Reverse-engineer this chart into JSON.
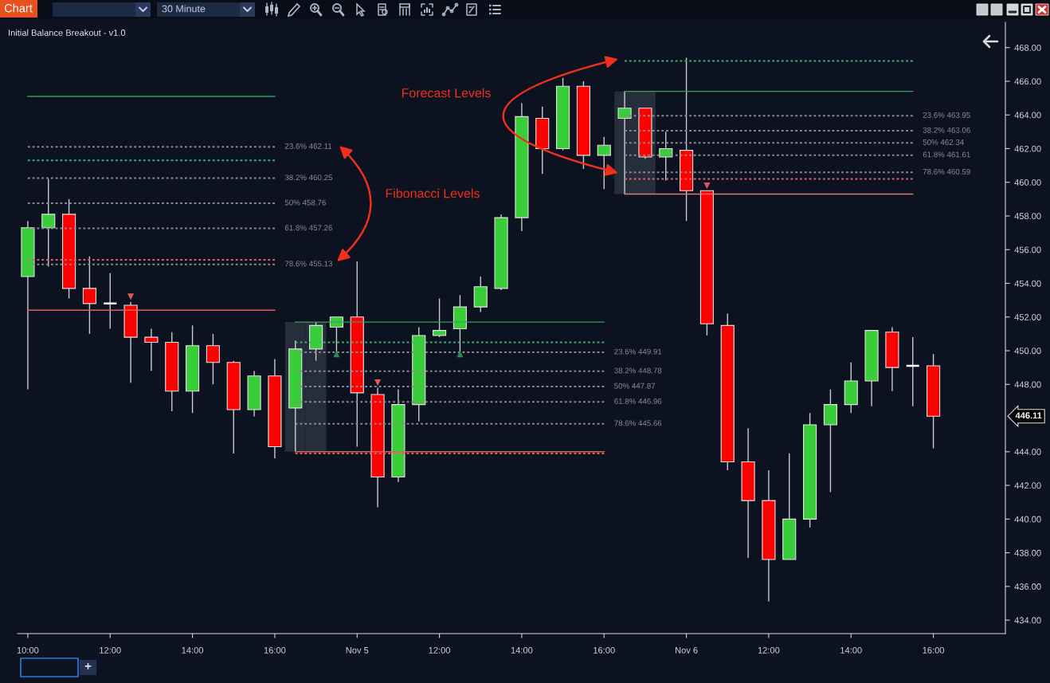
{
  "chart_data": {
    "type": "candlestick",
    "title": "Initial Balance Breakout - v1.0",
    "categories": [
      "10:00",
      null,
      null,
      null,
      "12:00",
      null,
      null,
      null,
      "14:00",
      null,
      null,
      null,
      "16:00",
      null,
      null,
      null,
      "Nov 5",
      null,
      null,
      null,
      "12:00",
      null,
      null,
      null,
      "14:00",
      null,
      null,
      null,
      "16:00",
      null,
      null,
      null,
      "Nov 6",
      null,
      null,
      null,
      "12:00",
      null,
      null,
      null,
      "14:00",
      null,
      null,
      null,
      "16:00",
      null,
      null,
      null
    ],
    "ohlc": [
      [
        454.4,
        457.7,
        447.7,
        457.3
      ],
      [
        457.3,
        460.2,
        455.0,
        458.1
      ],
      [
        458.1,
        459.0,
        453.1,
        453.7
      ],
      [
        453.7,
        455.6,
        451.0,
        452.8
      ],
      [
        452.8,
        454.6,
        451.3,
        452.8
      ],
      [
        452.7,
        452.9,
        448.1,
        450.8
      ],
      [
        450.8,
        451.3,
        448.8,
        450.5
      ],
      [
        450.5,
        451.1,
        446.4,
        447.6
      ],
      [
        447.6,
        451.5,
        446.3,
        450.3
      ],
      [
        450.3,
        451.0,
        448.0,
        449.3
      ],
      [
        449.3,
        449.4,
        443.9,
        446.5
      ],
      [
        446.5,
        448.8,
        446.1,
        448.5
      ],
      [
        448.5,
        449.5,
        443.6,
        444.3
      ],
      [
        446.6,
        450.6,
        444.0,
        450.1
      ],
      [
        450.1,
        451.7,
        449.4,
        451.5
      ],
      [
        451.4,
        452.0,
        449.9,
        452.0
      ],
      [
        452.0,
        455.3,
        444.3,
        447.5
      ],
      [
        447.4,
        447.8,
        440.7,
        442.5
      ],
      [
        442.5,
        447.7,
        442.2,
        446.8
      ],
      [
        446.8,
        451.4,
        445.8,
        450.9
      ],
      [
        450.9,
        453.1,
        450.8,
        451.2
      ],
      [
        451.3,
        453.3,
        449.9,
        452.6
      ],
      [
        452.6,
        454.4,
        452.3,
        453.8
      ],
      [
        453.7,
        458.1,
        453.6,
        457.9
      ],
      [
        457.9,
        464.7,
        457.1,
        463.9
      ],
      [
        463.8,
        464.5,
        460.5,
        462.0
      ],
      [
        462.0,
        466.2,
        461.9,
        465.7
      ],
      [
        465.7,
        466.0,
        460.8,
        461.6
      ],
      [
        461.6,
        462.7,
        459.6,
        462.2
      ],
      [
        463.8,
        465.4,
        459.3,
        464.4
      ],
      [
        464.4,
        464.4,
        461.4,
        461.5
      ],
      [
        461.5,
        463.0,
        460.1,
        462.0
      ],
      [
        461.9,
        467.4,
        457.7,
        459.5
      ],
      [
        459.5,
        459.5,
        450.9,
        451.6
      ],
      [
        451.5,
        452.2,
        442.9,
        443.4
      ],
      [
        443.4,
        445.4,
        437.7,
        441.1
      ],
      [
        441.1,
        442.9,
        435.1,
        437.6
      ],
      [
        437.6,
        443.9,
        437.6,
        440.0
      ],
      [
        440.0,
        446.3,
        439.5,
        445.6
      ],
      [
        445.6,
        447.7,
        441.6,
        446.8
      ],
      [
        446.8,
        449.3,
        446.3,
        448.2
      ],
      [
        448.2,
        451.2,
        446.7,
        451.2
      ],
      [
        451.1,
        451.4,
        447.6,
        449.0
      ],
      [
        449.1,
        450.8,
        446.7,
        449.1
      ],
      [
        449.1,
        449.8,
        444.2,
        446.11
      ],
      null,
      null,
      null
    ],
    "colors": [
      "#3acd3a",
      "#3acd3a",
      "#ff0000",
      "#ff0000",
      "#ffffff",
      "#ff0000",
      "#ff0000",
      "#ff0000",
      "#3acd3a",
      "#ff0000",
      "#ff0000",
      "#3acd3a",
      "#ff0000",
      "#3acd3a",
      "#3acd3a",
      "#3acd3a",
      "#ff0000",
      "#ff0000",
      "#3acd3a",
      "#3acd3a",
      "#3acd3a",
      "#3acd3a",
      "#3acd3a",
      "#3acd3a",
      "#3acd3a",
      "#ff0000",
      "#3acd3a",
      "#ff0000",
      "#3acd3a",
      "#3acd3a",
      "#ff0000",
      "#3acd3a",
      "#ff0000",
      "#ff0000",
      "#ff0000",
      "#ff0000",
      "#ff0000",
      "#3acd3a",
      "#3acd3a",
      "#3acd3a",
      "#3acd3a",
      "#3acd3a",
      "#ff0000",
      "#ffffff",
      "#ff0000",
      null,
      null,
      null
    ],
    "series": [
      {
        "type": "bar",
        "color": "#262d3b",
        "base": [
          null,
          null,
          null,
          null,
          null,
          null,
          null,
          null,
          null,
          null,
          null,
          null,
          null,
          444.0,
          444.0,
          null,
          null,
          null,
          null,
          null,
          null,
          null,
          null,
          null,
          null,
          null,
          null,
          null,
          null,
          459.3,
          459.3,
          null,
          null,
          null,
          null,
          null,
          null,
          null,
          null,
          null,
          null,
          null,
          null,
          null,
          null,
          null,
          null,
          null
        ],
        "values": [
          null,
          null,
          null,
          null,
          null,
          null,
          null,
          null,
          null,
          null,
          null,
          null,
          null,
          7.7,
          7.7,
          null,
          null,
          null,
          null,
          null,
          null,
          null,
          null,
          null,
          null,
          null,
          null,
          null,
          null,
          6.1,
          6.1,
          null,
          null,
          null,
          null,
          null,
          null,
          null,
          null,
          null,
          null,
          null,
          null,
          null,
          null,
          null,
          null,
          null
        ]
      },
      {
        "type": "line",
        "color": "#2f9e5f",
        "line_style": "solid",
        "values": [
          465.1,
          465.1,
          465.1,
          465.1,
          465.1,
          465.1,
          465.1,
          465.1,
          465.1,
          465.1,
          465.1,
          465.1,
          465.1,
          null,
          null,
          null,
          null,
          null,
          null,
          null,
          null,
          null,
          null,
          null,
          null,
          null,
          null,
          null,
          null,
          null,
          null,
          null,
          null,
          null,
          null,
          null,
          null,
          null,
          null,
          null,
          null,
          null,
          null,
          null,
          null,
          null,
          null,
          null
        ]
      },
      {
        "type": "line",
        "name": "23.6% 462.11",
        "color": "#8c8c8c",
        "line_style": "dotted",
        "values": [
          462.11,
          462.11,
          462.11,
          462.11,
          462.11,
          462.11,
          462.11,
          462.11,
          462.11,
          462.11,
          462.11,
          462.11,
          462.11,
          null,
          null,
          null,
          null,
          null,
          null,
          null,
          null,
          null,
          null,
          null,
          null,
          null,
          null,
          null,
          null,
          null,
          null,
          null,
          null,
          null,
          null,
          null,
          null,
          null,
          null,
          null,
          null,
          null,
          null,
          null,
          null,
          null,
          null,
          null
        ]
      },
      {
        "type": "line",
        "color": "#3cb371",
        "line_style": "dotted",
        "values": [
          461.3,
          461.3,
          461.3,
          461.3,
          461.3,
          461.3,
          461.3,
          461.3,
          461.3,
          461.3,
          461.3,
          461.3,
          461.3,
          null,
          null,
          null,
          null,
          null,
          null,
          null,
          null,
          null,
          null,
          null,
          null,
          null,
          null,
          null,
          null,
          null,
          null,
          null,
          null,
          null,
          null,
          null,
          null,
          null,
          null,
          null,
          null,
          null,
          null,
          null,
          null,
          null,
          null,
          null
        ]
      },
      {
        "type": "line",
        "name": "38.2% 460.25",
        "color": "#8c8c8c",
        "line_style": "dotted",
        "values": [
          460.25,
          460.25,
          460.25,
          460.25,
          460.25,
          460.25,
          460.25,
          460.25,
          460.25,
          460.25,
          460.25,
          460.25,
          460.25,
          null,
          null,
          null,
          null,
          null,
          null,
          null,
          null,
          null,
          null,
          null,
          null,
          null,
          null,
          null,
          null,
          null,
          null,
          null,
          null,
          null,
          null,
          null,
          null,
          null,
          null,
          null,
          null,
          null,
          null,
          null,
          null,
          null,
          null,
          null
        ]
      },
      {
        "type": "line",
        "name": "50% 458.76",
        "color": "#8c8c8c",
        "line_style": "dotted",
        "values": [
          458.76,
          458.76,
          458.76,
          458.76,
          458.76,
          458.76,
          458.76,
          458.76,
          458.76,
          458.76,
          458.76,
          458.76,
          458.76,
          null,
          null,
          null,
          null,
          null,
          null,
          null,
          null,
          null,
          null,
          null,
          null,
          null,
          null,
          null,
          null,
          null,
          null,
          null,
          null,
          null,
          null,
          null,
          null,
          null,
          null,
          null,
          null,
          null,
          null,
          null,
          null,
          null,
          null,
          null
        ]
      },
      {
        "type": "line",
        "name": "61.8% 457.26",
        "color": "#8c8c8c",
        "line_style": "dotted",
        "values": [
          457.26,
          457.26,
          457.26,
          457.26,
          457.26,
          457.26,
          457.26,
          457.26,
          457.26,
          457.26,
          457.26,
          457.26,
          457.26,
          null,
          null,
          null,
          null,
          null,
          null,
          null,
          null,
          null,
          null,
          null,
          null,
          null,
          null,
          null,
          null,
          null,
          null,
          null,
          null,
          null,
          null,
          null,
          null,
          null,
          null,
          null,
          null,
          null,
          null,
          null,
          null,
          null,
          null,
          null
        ]
      },
      {
        "type": "line",
        "color": "#e06464",
        "line_style": "dotted",
        "values": [
          455.4,
          455.4,
          455.4,
          455.4,
          455.4,
          455.4,
          455.4,
          455.4,
          455.4,
          455.4,
          455.4,
          455.4,
          455.4,
          null,
          null,
          null,
          null,
          null,
          null,
          null,
          null,
          null,
          null,
          null,
          null,
          null,
          null,
          null,
          null,
          null,
          null,
          null,
          null,
          null,
          null,
          null,
          null,
          null,
          null,
          null,
          null,
          null,
          null,
          null,
          null,
          null,
          null,
          null
        ]
      },
      {
        "type": "line",
        "name": "78.6% 455.13",
        "color": "#8c8c8c",
        "line_style": "dotted",
        "values": [
          455.13,
          455.13,
          455.13,
          455.13,
          455.13,
          455.13,
          455.13,
          455.13,
          455.13,
          455.13,
          455.13,
          455.13,
          455.13,
          null,
          null,
          null,
          null,
          null,
          null,
          null,
          null,
          null,
          null,
          null,
          null,
          null,
          null,
          null,
          null,
          null,
          null,
          null,
          null,
          null,
          null,
          null,
          null,
          null,
          null,
          null,
          null,
          null,
          null,
          null,
          null,
          null,
          null,
          null
        ]
      },
      {
        "type": "line",
        "color": "#d9605f",
        "line_style": "solid",
        "values": [
          452.4,
          452.4,
          452.4,
          452.4,
          452.4,
          452.4,
          452.4,
          452.4,
          452.4,
          452.4,
          452.4,
          452.4,
          452.4,
          null,
          null,
          null,
          null,
          null,
          null,
          null,
          null,
          null,
          null,
          null,
          null,
          null,
          null,
          null,
          null,
          null,
          null,
          null,
          null,
          null,
          null,
          null,
          null,
          null,
          null,
          null,
          null,
          null,
          null,
          null,
          null,
          null,
          null,
          null
        ]
      },
      {
        "type": "line",
        "color": "#2f9e5f",
        "line_style": "solid",
        "values": [
          null,
          null,
          null,
          null,
          null,
          null,
          null,
          null,
          null,
          null,
          null,
          null,
          null,
          451.7,
          451.7,
          451.7,
          451.7,
          451.7,
          451.7,
          451.7,
          451.7,
          451.7,
          451.7,
          451.7,
          451.7,
          451.7,
          451.7,
          451.7,
          451.7,
          null,
          null,
          null,
          null,
          null,
          null,
          null,
          null,
          null,
          null,
          null,
          null,
          null,
          null,
          null,
          null,
          null,
          null,
          null
        ]
      },
      {
        "type": "line",
        "color": "#3cb371",
        "line_style": "dotted",
        "values": [
          null,
          null,
          null,
          null,
          null,
          null,
          null,
          null,
          null,
          null,
          null,
          null,
          null,
          450.5,
          450.5,
          450.5,
          450.5,
          450.5,
          450.5,
          450.5,
          450.5,
          450.5,
          450.5,
          450.5,
          450.5,
          450.5,
          450.5,
          450.5,
          450.5,
          null,
          null,
          null,
          null,
          null,
          null,
          null,
          null,
          null,
          null,
          null,
          null,
          null,
          null,
          null,
          null,
          null,
          null,
          null
        ]
      },
      {
        "type": "line",
        "name": "23.6% 449.91",
        "color": "#8c8c8c",
        "line_style": "dotted",
        "values": [
          null,
          null,
          null,
          null,
          null,
          null,
          null,
          null,
          null,
          null,
          null,
          null,
          null,
          449.91,
          449.91,
          449.91,
          449.91,
          449.91,
          449.91,
          449.91,
          449.91,
          449.91,
          449.91,
          449.91,
          449.91,
          449.91,
          449.91,
          449.91,
          449.91,
          null,
          null,
          null,
          null,
          null,
          null,
          null,
          null,
          null,
          null,
          null,
          null,
          null,
          null,
          null,
          null,
          null,
          null,
          null
        ]
      },
      {
        "type": "line",
        "name": "38.2% 448.78",
        "color": "#8c8c8c",
        "line_style": "dotted",
        "values": [
          null,
          null,
          null,
          null,
          null,
          null,
          null,
          null,
          null,
          null,
          null,
          null,
          null,
          448.78,
          448.78,
          448.78,
          448.78,
          448.78,
          448.78,
          448.78,
          448.78,
          448.78,
          448.78,
          448.78,
          448.78,
          448.78,
          448.78,
          448.78,
          448.78,
          null,
          null,
          null,
          null,
          null,
          null,
          null,
          null,
          null,
          null,
          null,
          null,
          null,
          null,
          null,
          null,
          null,
          null,
          null
        ]
      },
      {
        "type": "line",
        "name": "50% 447.87",
        "color": "#8c8c8c",
        "line_style": "dotted",
        "values": [
          null,
          null,
          null,
          null,
          null,
          null,
          null,
          null,
          null,
          null,
          null,
          null,
          null,
          447.87,
          447.87,
          447.87,
          447.87,
          447.87,
          447.87,
          447.87,
          447.87,
          447.87,
          447.87,
          447.87,
          447.87,
          447.87,
          447.87,
          447.87,
          447.87,
          null,
          null,
          null,
          null,
          null,
          null,
          null,
          null,
          null,
          null,
          null,
          null,
          null,
          null,
          null,
          null,
          null,
          null,
          null
        ]
      },
      {
        "type": "line",
        "name": "61.8% 446.96",
        "color": "#8c8c8c",
        "line_style": "dotted",
        "values": [
          null,
          null,
          null,
          null,
          null,
          null,
          null,
          null,
          null,
          null,
          null,
          null,
          null,
          446.96,
          446.96,
          446.96,
          446.96,
          446.96,
          446.96,
          446.96,
          446.96,
          446.96,
          446.96,
          446.96,
          446.96,
          446.96,
          446.96,
          446.96,
          446.96,
          null,
          null,
          null,
          null,
          null,
          null,
          null,
          null,
          null,
          null,
          null,
          null,
          null,
          null,
          null,
          null,
          null,
          null,
          null
        ]
      },
      {
        "type": "line",
        "name": "78.6% 445.66",
        "color": "#8c8c8c",
        "line_style": "dotted",
        "values": [
          null,
          null,
          null,
          null,
          null,
          null,
          null,
          null,
          null,
          null,
          null,
          null,
          null,
          445.66,
          445.66,
          445.66,
          445.66,
          445.66,
          445.66,
          445.66,
          445.66,
          445.66,
          445.66,
          445.66,
          445.66,
          445.66,
          445.66,
          445.66,
          445.66,
          null,
          null,
          null,
          null,
          null,
          null,
          null,
          null,
          null,
          null,
          null,
          null,
          null,
          null,
          null,
          null,
          null,
          null,
          null
        ]
      },
      {
        "type": "line",
        "color": "#d9605f",
        "line_style": "solid",
        "values": [
          null,
          null,
          null,
          null,
          null,
          null,
          null,
          null,
          null,
          null,
          null,
          null,
          null,
          444.0,
          444.0,
          444.0,
          444.0,
          444.0,
          444.0,
          444.0,
          444.0,
          444.0,
          444.0,
          444.0,
          444.0,
          444.0,
          444.0,
          444.0,
          444.0,
          null,
          null,
          null,
          null,
          null,
          null,
          null,
          null,
          null,
          null,
          null,
          null,
          null,
          null,
          null,
          null,
          null,
          null,
          null
        ]
      },
      {
        "type": "line",
        "color": "#e06464",
        "line_style": "dotted",
        "values": [
          null,
          null,
          null,
          null,
          null,
          null,
          null,
          null,
          null,
          null,
          null,
          null,
          null,
          443.9,
          443.9,
          443.9,
          443.9,
          443.9,
          443.9,
          443.9,
          443.9,
          443.9,
          443.9,
          443.9,
          443.9,
          443.9,
          443.9,
          443.9,
          443.9,
          null,
          null,
          null,
          null,
          null,
          null,
          null,
          null,
          null,
          null,
          null,
          null,
          null,
          null,
          null,
          null,
          null,
          null,
          null
        ]
      },
      {
        "type": "line",
        "color": "#3cb371",
        "line_style": "dotted",
        "values": [
          null,
          null,
          null,
          null,
          null,
          null,
          null,
          null,
          null,
          null,
          null,
          null,
          null,
          null,
          null,
          null,
          null,
          null,
          null,
          null,
          null,
          null,
          null,
          null,
          null,
          null,
          null,
          null,
          null,
          467.2,
          467.2,
          467.2,
          467.2,
          467.2,
          467.2,
          467.2,
          467.2,
          467.2,
          467.2,
          467.2,
          467.2,
          467.2,
          467.2,
          467.2,
          null,
          null,
          null,
          null
        ]
      },
      {
        "type": "line",
        "color": "#2f9e5f",
        "line_style": "solid",
        "values": [
          null,
          null,
          null,
          null,
          null,
          null,
          null,
          null,
          null,
          null,
          null,
          null,
          null,
          null,
          null,
          null,
          null,
          null,
          null,
          null,
          null,
          null,
          null,
          null,
          null,
          null,
          null,
          null,
          null,
          465.4,
          465.4,
          465.4,
          465.4,
          465.4,
          465.4,
          465.4,
          465.4,
          465.4,
          465.4,
          465.4,
          465.4,
          465.4,
          465.4,
          465.4,
          null,
          null,
          null,
          null
        ]
      },
      {
        "type": "line",
        "name": "23.6% 463.95",
        "color": "#8c8c8c",
        "line_style": "dotted",
        "values": [
          null,
          null,
          null,
          null,
          null,
          null,
          null,
          null,
          null,
          null,
          null,
          null,
          null,
          null,
          null,
          null,
          null,
          null,
          null,
          null,
          null,
          null,
          null,
          null,
          null,
          null,
          null,
          null,
          null,
          463.95,
          463.95,
          463.95,
          463.95,
          463.95,
          463.95,
          463.95,
          463.95,
          463.95,
          463.95,
          463.95,
          463.95,
          463.95,
          463.95,
          463.95,
          null,
          null,
          null,
          null
        ]
      },
      {
        "type": "line",
        "name": "38.2% 463.06",
        "color": "#8c8c8c",
        "line_style": "dotted",
        "values": [
          null,
          null,
          null,
          null,
          null,
          null,
          null,
          null,
          null,
          null,
          null,
          null,
          null,
          null,
          null,
          null,
          null,
          null,
          null,
          null,
          null,
          null,
          null,
          null,
          null,
          null,
          null,
          null,
          null,
          463.06,
          463.06,
          463.06,
          463.06,
          463.06,
          463.06,
          463.06,
          463.06,
          463.06,
          463.06,
          463.06,
          463.06,
          463.06,
          463.06,
          463.06,
          null,
          null,
          null,
          null
        ]
      },
      {
        "type": "line",
        "name": "50% 462.34",
        "color": "#8c8c8c",
        "line_style": "dotted",
        "values": [
          null,
          null,
          null,
          null,
          null,
          null,
          null,
          null,
          null,
          null,
          null,
          null,
          null,
          null,
          null,
          null,
          null,
          null,
          null,
          null,
          null,
          null,
          null,
          null,
          null,
          null,
          null,
          null,
          null,
          462.34,
          462.34,
          462.34,
          462.34,
          462.34,
          462.34,
          462.34,
          462.34,
          462.34,
          462.34,
          462.34,
          462.34,
          462.34,
          462.34,
          462.34,
          null,
          null,
          null,
          null
        ]
      },
      {
        "type": "line",
        "name": "61.8% 461.61",
        "color": "#8c8c8c",
        "line_style": "dotted",
        "values": [
          null,
          null,
          null,
          null,
          null,
          null,
          null,
          null,
          null,
          null,
          null,
          null,
          null,
          null,
          null,
          null,
          null,
          null,
          null,
          null,
          null,
          null,
          null,
          null,
          null,
          null,
          null,
          null,
          null,
          461.61,
          461.61,
          461.61,
          461.61,
          461.61,
          461.61,
          461.61,
          461.61,
          461.61,
          461.61,
          461.61,
          461.61,
          461.61,
          461.61,
          461.61,
          null,
          null,
          null,
          null
        ]
      },
      {
        "type": "line",
        "name": "78.6% 460.59",
        "color": "#8c8c8c",
        "line_style": "dotted",
        "values": [
          null,
          null,
          null,
          null,
          null,
          null,
          null,
          null,
          null,
          null,
          null,
          null,
          null,
          null,
          null,
          null,
          null,
          null,
          null,
          null,
          null,
          null,
          null,
          null,
          null,
          null,
          null,
          null,
          null,
          460.59,
          460.59,
          460.59,
          460.59,
          460.59,
          460.59,
          460.59,
          460.59,
          460.59,
          460.59,
          460.59,
          460.59,
          460.59,
          460.59,
          460.59,
          null,
          null,
          null,
          null
        ]
      },
      {
        "type": "line",
        "color": "#e06464",
        "line_style": "dotted",
        "values": [
          null,
          null,
          null,
          null,
          null,
          null,
          null,
          null,
          null,
          null,
          null,
          null,
          null,
          null,
          null,
          null,
          null,
          null,
          null,
          null,
          null,
          null,
          null,
          null,
          null,
          null,
          null,
          null,
          null,
          460.2,
          460.2,
          460.2,
          460.2,
          460.2,
          460.2,
          460.2,
          460.2,
          460.2,
          460.2,
          460.2,
          460.2,
          460.2,
          460.2,
          460.2,
          null,
          null,
          null,
          null
        ]
      },
      {
        "type": "line",
        "color": "#e07a7a",
        "line_style": "solid",
        "values": [
          null,
          null,
          null,
          null,
          null,
          null,
          null,
          null,
          null,
          null,
          null,
          null,
          null,
          null,
          null,
          null,
          null,
          null,
          null,
          null,
          null,
          null,
          null,
          null,
          null,
          null,
          null,
          null,
          null,
          459.3,
          459.3,
          459.3,
          459.3,
          459.3,
          459.3,
          459.3,
          459.3,
          459.3,
          459.3,
          459.3,
          459.3,
          459.3,
          459.3,
          459.3,
          null,
          null,
          null,
          null
        ]
      },
      {
        "type": "scatter",
        "marker": "triangle",
        "color": "#e05a5a",
        "values": [
          null,
          null,
          null,
          null,
          null,
          453.2,
          null,
          null,
          null,
          null,
          null,
          null,
          null,
          null,
          null,
          null,
          null,
          448.1,
          null,
          null,
          null,
          null,
          null,
          null,
          null,
          null,
          null,
          null,
          null,
          null,
          null,
          null,
          null,
          459.8,
          null,
          null,
          null,
          null,
          null,
          null,
          null,
          null,
          null,
          null,
          null,
          null,
          null,
          null
        ]
      },
      {
        "type": "scatter",
        "marker": "triangle",
        "color": "#2e8b57",
        "values": [
          null,
          null,
          null,
          null,
          null,
          null,
          null,
          null,
          null,
          null,
          null,
          null,
          null,
          null,
          null,
          449.8,
          null,
          null,
          null,
          null,
          null,
          449.8,
          null,
          null,
          null,
          null,
          null,
          null,
          null,
          null,
          null,
          null,
          null,
          null,
          null,
          null,
          null,
          null,
          null,
          null,
          null,
          null,
          null,
          null,
          null,
          null,
          null,
          null
        ]
      }
    ],
    "ylim": [
      433.2,
      469.5
    ],
    "yticks": [
      {
        "value": 434,
        "label": "434.00"
      },
      {
        "value": 436,
        "label": "436.00"
      },
      {
        "value": 438,
        "label": "438.00"
      },
      {
        "value": 440,
        "label": "440.00"
      },
      {
        "value": 442,
        "label": "442.00"
      },
      {
        "value": 444,
        "label": "444.00"
      },
      {
        "value": 448,
        "label": "448.00"
      },
      {
        "value": 450,
        "label": "450.00"
      },
      {
        "value": 452,
        "label": "452.00"
      },
      {
        "value": 454,
        "label": "454.00"
      },
      {
        "value": 456,
        "label": "456.00"
      },
      {
        "value": 458,
        "label": "458.00"
      },
      {
        "value": 460,
        "label": "460.00"
      },
      {
        "value": 462,
        "label": "462.00"
      },
      {
        "value": 464,
        "label": "464.00"
      },
      {
        "value": 466,
        "label": "466.00"
      },
      {
        "value": 468,
        "label": "468.00"
      }
    ],
    "annotations": [
      "Fibonacci Levels",
      "Forecast Levels",
      "Chart",
      "30 Minute",
      "+",
      "446.11"
    ]
  }
}
